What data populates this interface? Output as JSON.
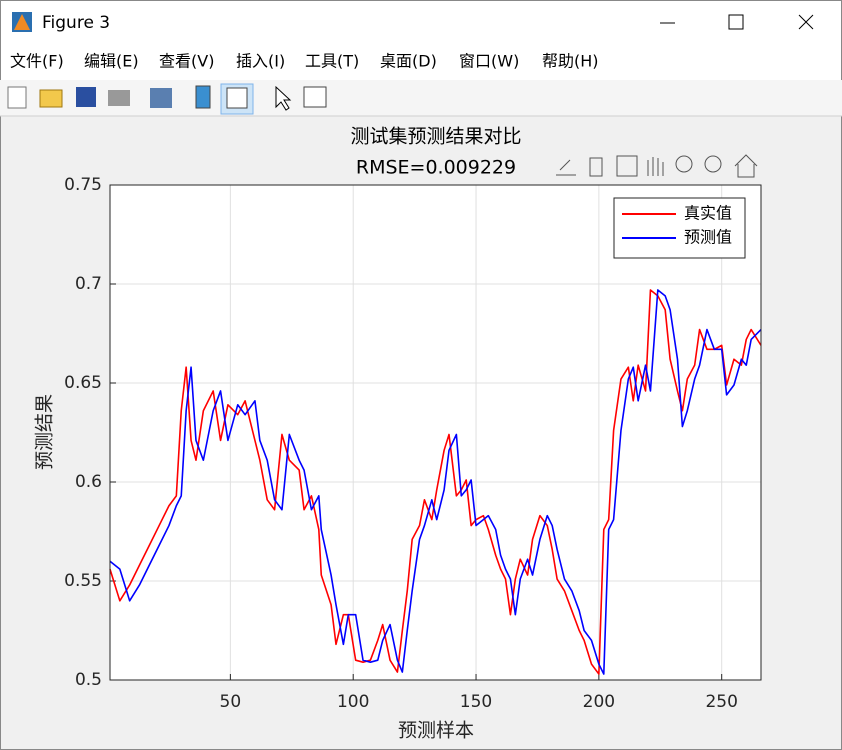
{
  "window": {
    "title": "Figure 3",
    "menu": [
      "文件(F)",
      "编辑(E)",
      "查看(V)",
      "插入(I)",
      "工具(T)",
      "桌面(D)",
      "窗口(W)",
      "帮助(H)"
    ]
  },
  "chart_data": {
    "type": "line",
    "title": "测试集预测结果对比",
    "subtitle": "RMSE=0.009229",
    "x_label": "预测样本",
    "y_label": "预测结果",
    "x": [
      1,
      5,
      9,
      13,
      17,
      21,
      25,
      28,
      30,
      32,
      34,
      36,
      39,
      43,
      46,
      49,
      53,
      56,
      60,
      62,
      65,
      68,
      71,
      74,
      78,
      80,
      83,
      86,
      87,
      91,
      93,
      96,
      98,
      101,
      104,
      107,
      110,
      112,
      115,
      118,
      120,
      122,
      124,
      127,
      129,
      132,
      134,
      137,
      139,
      142,
      144,
      146,
      148,
      150,
      153,
      155,
      158,
      160,
      162,
      164,
      166,
      168,
      171,
      173,
      176,
      179,
      181,
      183,
      186,
      189,
      192,
      194,
      197,
      200,
      202,
      204,
      206,
      209,
      212,
      214,
      216,
      219,
      221,
      224,
      227,
      229,
      232,
      234,
      236,
      239,
      241,
      244,
      247,
      250,
      252,
      255,
      258,
      260,
      262,
      266
    ],
    "series": [
      {
        "name": "真实值",
        "color": "#ff0000",
        "values": [
          0.556,
          0.54,
          0.548,
          0.558,
          0.568,
          0.578,
          0.588,
          0.593,
          0.636,
          0.658,
          0.621,
          0.611,
          0.636,
          0.646,
          0.621,
          0.639,
          0.634,
          0.641,
          0.621,
          0.611,
          0.591,
          0.586,
          0.624,
          0.611,
          0.606,
          0.586,
          0.593,
          0.576,
          0.553,
          0.538,
          0.518,
          0.533,
          0.533,
          0.51,
          0.509,
          0.51,
          0.52,
          0.528,
          0.51,
          0.504,
          0.525,
          0.545,
          0.571,
          0.578,
          0.591,
          0.581,
          0.596,
          0.616,
          0.624,
          0.593,
          0.596,
          0.601,
          0.578,
          0.581,
          0.583,
          0.576,
          0.563,
          0.556,
          0.551,
          0.533,
          0.551,
          0.561,
          0.553,
          0.571,
          0.583,
          0.578,
          0.566,
          0.551,
          0.545,
          0.535,
          0.525,
          0.52,
          0.508,
          0.503,
          0.576,
          0.581,
          0.626,
          0.652,
          0.658,
          0.641,
          0.659,
          0.646,
          0.697,
          0.694,
          0.687,
          0.662,
          0.646,
          0.636,
          0.652,
          0.659,
          0.677,
          0.667,
          0.667,
          0.669,
          0.649,
          0.662,
          0.659,
          0.672,
          0.677,
          0.669
        ]
      },
      {
        "name": "预测值",
        "color": "#0000ff",
        "values": [
          0.56,
          0.556,
          0.54,
          0.548,
          0.558,
          0.568,
          0.578,
          0.588,
          0.593,
          0.636,
          0.658,
          0.621,
          0.611,
          0.636,
          0.646,
          0.621,
          0.639,
          0.634,
          0.641,
          0.621,
          0.611,
          0.591,
          0.586,
          0.624,
          0.611,
          0.606,
          0.586,
          0.593,
          0.576,
          0.553,
          0.538,
          0.518,
          0.533,
          0.533,
          0.51,
          0.509,
          0.51,
          0.52,
          0.528,
          0.51,
          0.504,
          0.525,
          0.545,
          0.571,
          0.578,
          0.591,
          0.581,
          0.596,
          0.616,
          0.624,
          0.593,
          0.596,
          0.601,
          0.578,
          0.581,
          0.583,
          0.576,
          0.563,
          0.556,
          0.551,
          0.533,
          0.551,
          0.561,
          0.553,
          0.571,
          0.583,
          0.578,
          0.566,
          0.551,
          0.545,
          0.535,
          0.525,
          0.52,
          0.508,
          0.503,
          0.576,
          0.581,
          0.626,
          0.652,
          0.658,
          0.641,
          0.659,
          0.646,
          0.697,
          0.694,
          0.687,
          0.662,
          0.628,
          0.636,
          0.652,
          0.659,
          0.677,
          0.667,
          0.667,
          0.644,
          0.649,
          0.662,
          0.659,
          0.672,
          0.677
        ]
      }
    ],
    "xlim": [
      1,
      266
    ],
    "xticks": [
      50,
      100,
      150,
      200,
      250
    ],
    "ylim": [
      0.5,
      0.75
    ],
    "yticks": [
      0.5,
      0.55,
      0.6,
      0.65,
      0.7,
      0.75
    ],
    "grid": true,
    "legend": "upper-right"
  }
}
